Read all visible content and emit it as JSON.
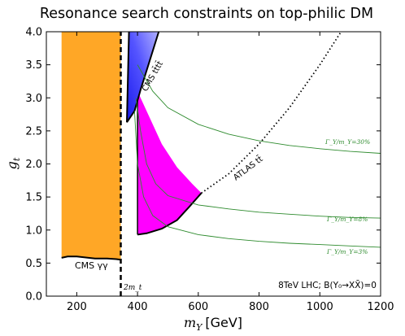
{
  "chart_data": {
    "type": "area",
    "title": "Resonance search constraints on top-philic DM",
    "xlabel": "m_Y [GeV]",
    "xlabel_parts": {
      "var": "m",
      "sub": "Y",
      "unit": "[GeV]"
    },
    "ylabel": "g_t",
    "ylabel_parts": {
      "var": "g",
      "sub": "t"
    },
    "xlim": [
      100,
      1200
    ],
    "ylim": [
      0.0,
      4.0
    ],
    "xticks": [
      200,
      400,
      600,
      800,
      1000,
      1200
    ],
    "yticks": [
      0.0,
      0.5,
      1.0,
      1.5,
      2.0,
      2.5,
      3.0,
      3.5,
      4.0
    ],
    "legend": "none",
    "grid": false,
    "regions": [
      {
        "name": "CMS γγ",
        "label": "CMS γγ",
        "color": "#ffa726",
        "boundary": [
          [
            150,
            0.58
          ],
          [
            170,
            0.6
          ],
          [
            200,
            0.6
          ],
          [
            260,
            0.57
          ],
          [
            300,
            0.57
          ],
          [
            330,
            0.56
          ],
          [
            345,
            0.55
          ],
          [
            345,
            4.0
          ],
          [
            150,
            4.0
          ]
        ]
      },
      {
        "name": "CMS tt̄tt̄",
        "label": "CMS tt̄tt̄",
        "color_dark": "#2222ee",
        "color_light": "#9999ff",
        "boundary": [
          [
            365,
            2.63
          ],
          [
            390,
            2.8
          ],
          [
            410,
            3.12
          ],
          [
            440,
            3.56
          ],
          [
            470,
            4.0
          ],
          [
            370,
            4.0
          ]
        ]
      },
      {
        "name": "ATLAS tt̄",
        "color": "#ff00ff",
        "upper_boundary": [
          [
            400,
            3.1
          ],
          [
            430,
            2.8
          ],
          [
            480,
            2.3
          ],
          [
            530,
            1.95
          ],
          [
            580,
            1.7
          ],
          [
            610,
            1.56
          ]
        ],
        "lower_boundary": [
          [
            400,
            0.93
          ],
          [
            430,
            0.95
          ],
          [
            480,
            1.02
          ],
          [
            530,
            1.15
          ],
          [
            570,
            1.35
          ],
          [
            610,
            1.56
          ]
        ]
      }
    ],
    "lines": [
      {
        "name": "2m_t",
        "style": "dashed",
        "color": "#000000",
        "points": [
          [
            345,
            0.0
          ],
          [
            345,
            4.0
          ]
        ]
      },
      {
        "name": "ATLAS tt̄ extrapolation",
        "label": "ATLAS tt̄",
        "style": "dotted",
        "color": "#000000",
        "points": [
          [
            610,
            1.56
          ],
          [
            700,
            1.85
          ],
          [
            800,
            2.3
          ],
          [
            900,
            2.85
          ],
          [
            1000,
            3.5
          ],
          [
            1070,
            4.0
          ]
        ]
      },
      {
        "name": "Γ_Y/m_Y=30%",
        "label": "Γ_Y/m_Y=30%",
        "style": "solid",
        "color": "#2e8b2e",
        "points": [
          [
            400,
            3.5
          ],
          [
            450,
            3.1
          ],
          [
            500,
            2.85
          ],
          [
            600,
            2.6
          ],
          [
            700,
            2.45
          ],
          [
            800,
            2.35
          ],
          [
            900,
            2.28
          ],
          [
            1000,
            2.23
          ],
          [
            1100,
            2.19
          ],
          [
            1200,
            2.16
          ]
        ]
      },
      {
        "name": "Γ_Y/m_Y=8%",
        "label": "Γ_Y/m_Y=8%",
        "style": "solid",
        "color": "#2e8b2e",
        "points": [
          [
            395,
            3.0
          ],
          [
            410,
            2.5
          ],
          [
            430,
            2.0
          ],
          [
            460,
            1.7
          ],
          [
            500,
            1.52
          ],
          [
            600,
            1.38
          ],
          [
            700,
            1.32
          ],
          [
            800,
            1.27
          ],
          [
            900,
            1.24
          ],
          [
            1000,
            1.21
          ],
          [
            1100,
            1.19
          ],
          [
            1200,
            1.18
          ]
        ]
      },
      {
        "name": "Γ_Y/m_Y=3%",
        "label": "Γ_Y/m_Y=3%",
        "style": "solid",
        "color": "#2e8b2e",
        "points": [
          [
            390,
            2.8
          ],
          [
            400,
            2.0
          ],
          [
            420,
            1.5
          ],
          [
            450,
            1.22
          ],
          [
            500,
            1.05
          ],
          [
            600,
            0.93
          ],
          [
            700,
            0.87
          ],
          [
            800,
            0.83
          ],
          [
            900,
            0.8
          ],
          [
            1000,
            0.78
          ],
          [
            1100,
            0.76
          ],
          [
            1200,
            0.74
          ]
        ]
      }
    ],
    "annotations": [
      {
        "name": "cms-gammagamma",
        "text": "CMS γγ"
      },
      {
        "name": "cms-tttt",
        "text": "CMS tt̄tt̄"
      },
      {
        "name": "atlas-tt",
        "text": "ATLAS tt̄"
      },
      {
        "name": "width-30",
        "text": "Γ_Y/m_Y=30%"
      },
      {
        "name": "width-8",
        "text": "Γ_Y/m_Y=8%"
      },
      {
        "name": "width-3",
        "text": "Γ_Y/m_Y=3%"
      },
      {
        "name": "two-mt",
        "text": "2m_t"
      },
      {
        "name": "lhc-note",
        "text": "8TeV LHC; B(Y₀→XX̄)=0"
      }
    ]
  }
}
